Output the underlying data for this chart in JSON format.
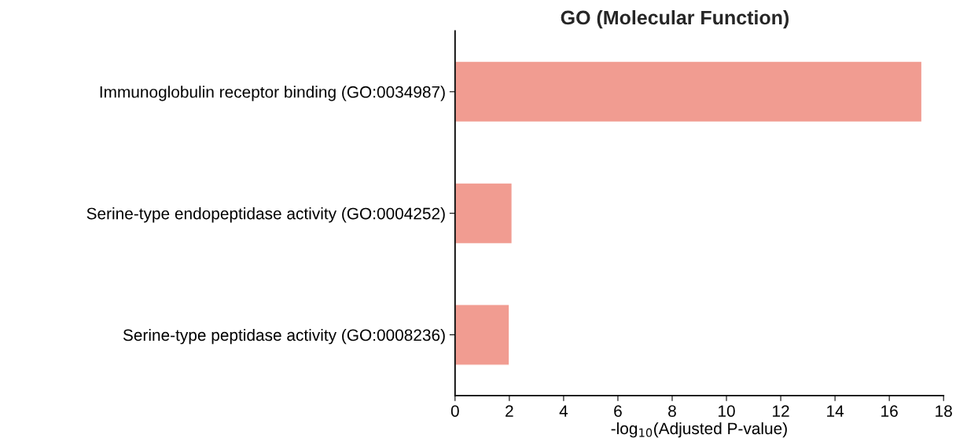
{
  "chart_data": {
    "type": "bar",
    "orientation": "horizontal",
    "title": "GO (Molecular Function)",
    "xlabel": "-log$_{10}$(Adjusted P-value)",
    "categories": [
      "Immunoglobulin receptor binding (GO:0034987)",
      "Serine-type endopeptidase activity (GO:0004252)",
      "Serine-type peptidase activity (GO:0008236)"
    ],
    "values": [
      17.2,
      2.1,
      2.0
    ],
    "color": "#f19c91",
    "xlim": [
      0,
      18
    ],
    "xticks": [
      0,
      2,
      4,
      6,
      8,
      10,
      12,
      14,
      16,
      18
    ],
    "grid": false
  }
}
